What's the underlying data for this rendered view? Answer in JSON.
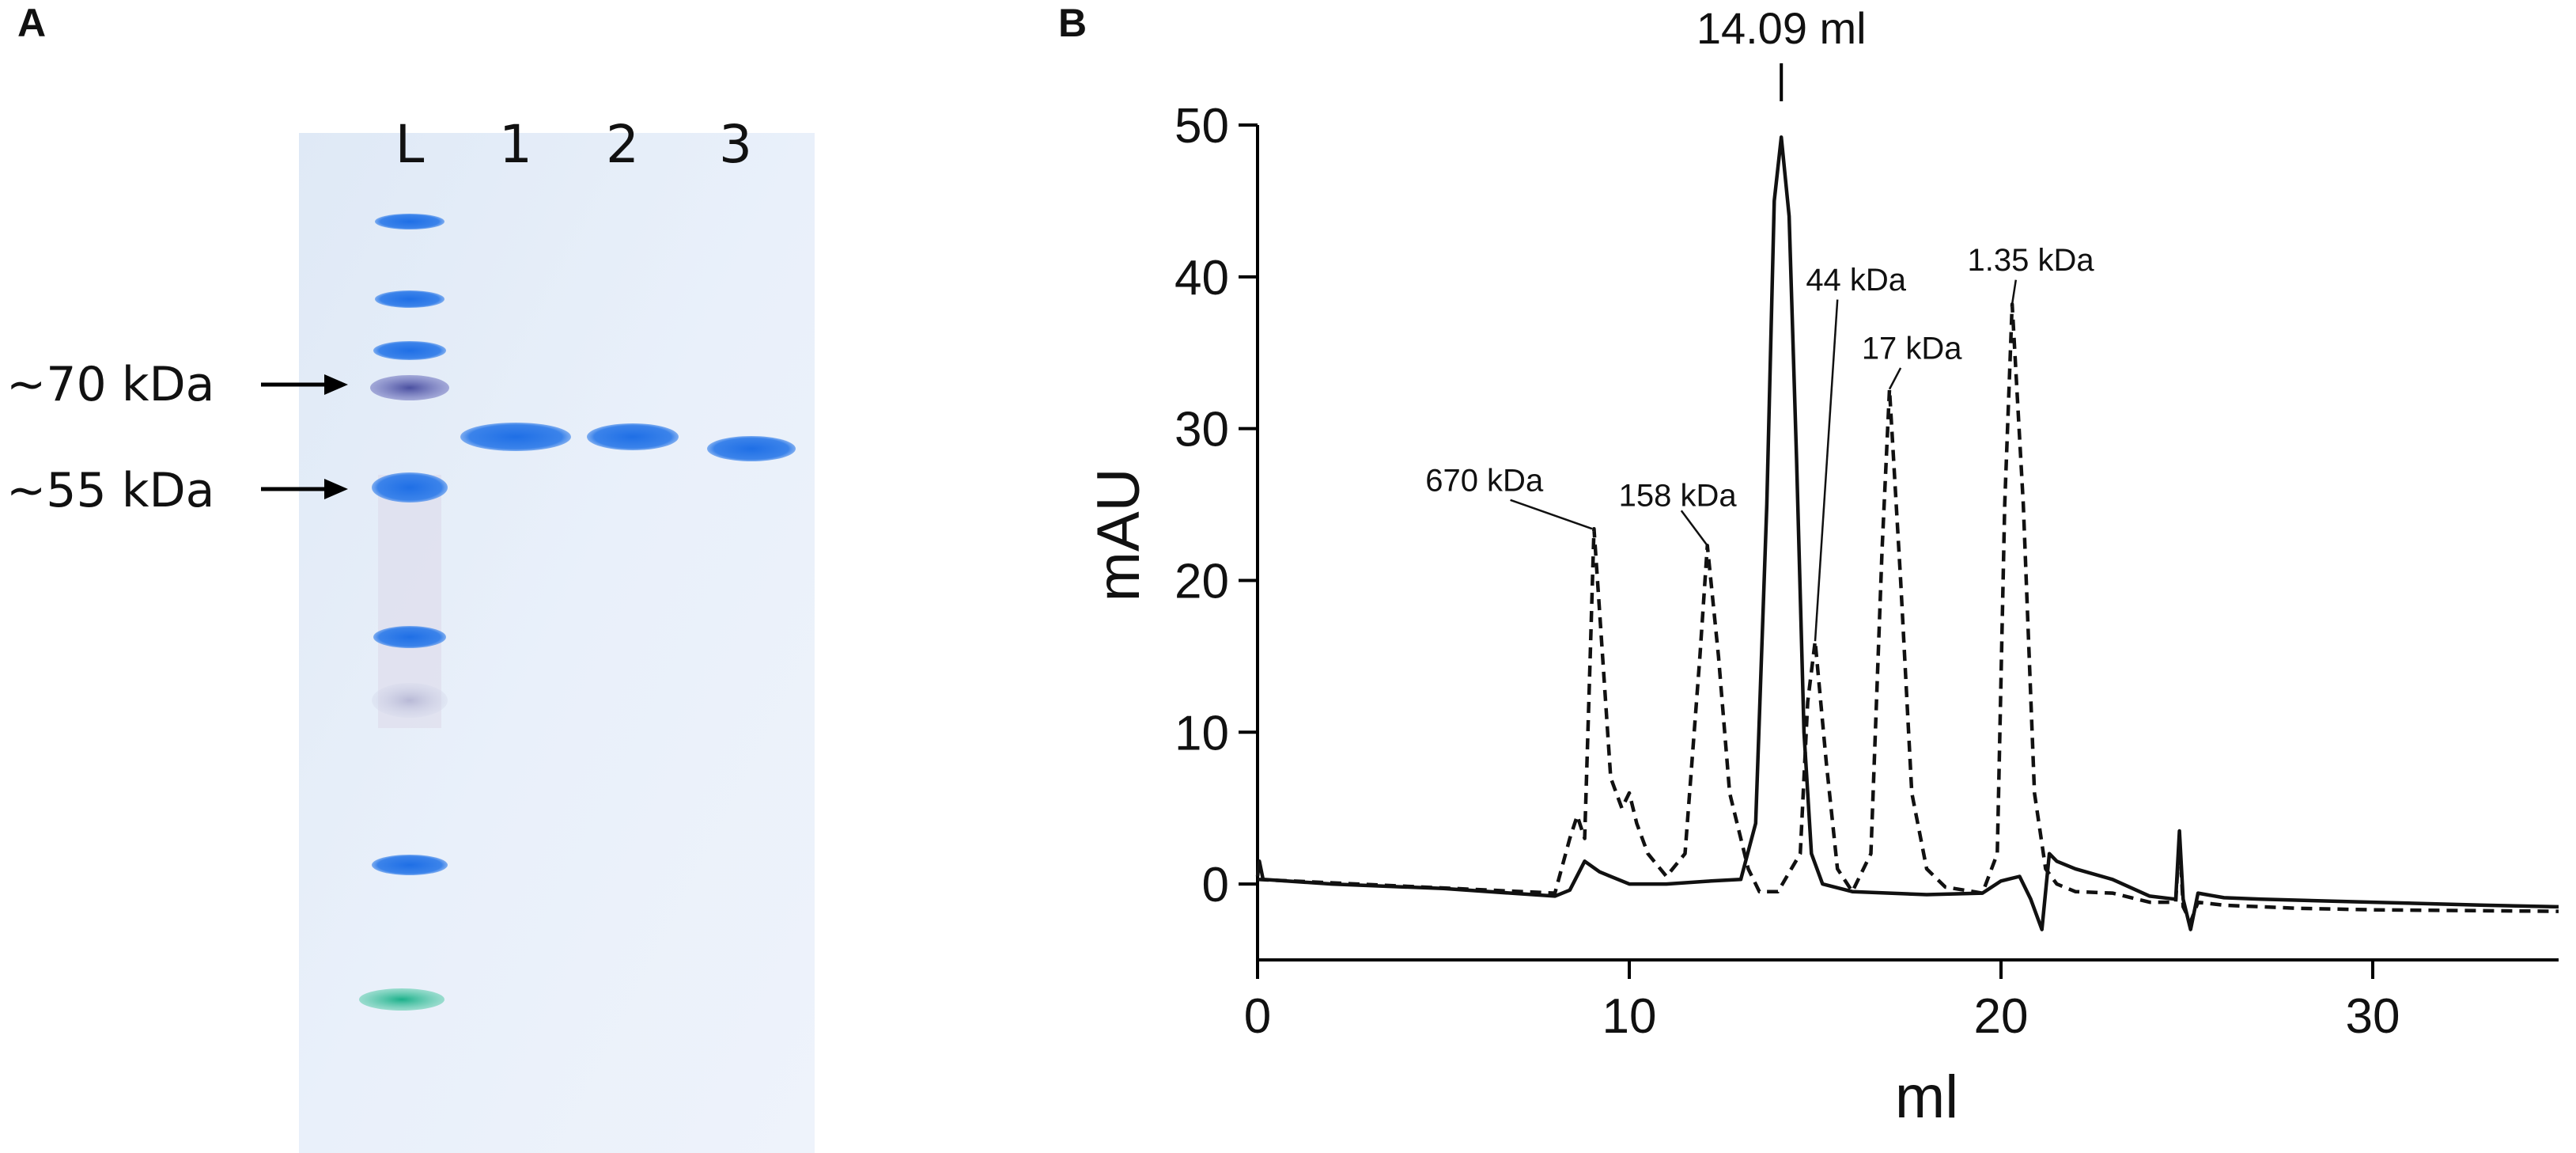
{
  "panels": {
    "a_label": "A",
    "b_label": "B"
  },
  "gel": {
    "lane_labels": [
      "L",
      "1",
      "2",
      "3"
    ],
    "marker_labels": [
      "~70 kDa",
      "~55 kDa"
    ]
  },
  "chart_data": {
    "type": "line",
    "title": "",
    "xlabel": "ml",
    "ylabel": "mAU",
    "xlim": [
      0,
      35
    ],
    "ylim": [
      -5,
      50
    ],
    "x_ticks": [
      0,
      10,
      20,
      30
    ],
    "x_tick_labels": [
      "0",
      "10",
      "20",
      "30"
    ],
    "y_ticks": [
      0,
      10,
      20,
      30,
      40,
      50
    ],
    "y_tick_labels": [
      "0",
      "10",
      "20",
      "30",
      "40",
      "50"
    ],
    "grid": false,
    "legend": "none",
    "peak_label": "14.09 ml",
    "annotations": [
      {
        "text": "670 kDa",
        "x": 9.0,
        "y": 23.4
      },
      {
        "text": "158 kDa",
        "x": 12.1,
        "y": 22.3
      },
      {
        "text": "44 kDa",
        "x": 15.0,
        "y": 16.0
      },
      {
        "text": "17 kDa",
        "x": 17.0,
        "y": 32.6
      },
      {
        "text": "1.35 kDa",
        "x": 20.3,
        "y": 38.2
      }
    ],
    "series": [
      {
        "style": "solid",
        "points": [
          [
            0,
            0.5
          ],
          [
            0.05,
            1.5
          ],
          [
            0.15,
            0.3
          ],
          [
            2,
            0.0
          ],
          [
            5,
            -0.3
          ],
          [
            8,
            -0.8
          ],
          [
            8.4,
            -0.4
          ],
          [
            8.8,
            1.5
          ],
          [
            9.2,
            0.8
          ],
          [
            10,
            0
          ],
          [
            11,
            0
          ],
          [
            12.2,
            0.2
          ],
          [
            13,
            0.3
          ],
          [
            13.4,
            4
          ],
          [
            13.7,
            25
          ],
          [
            13.9,
            45
          ],
          [
            14.09,
            49.2
          ],
          [
            14.3,
            44
          ],
          [
            14.5,
            28
          ],
          [
            14.7,
            10
          ],
          [
            14.9,
            2
          ],
          [
            15.2,
            0
          ],
          [
            16,
            -0.5
          ],
          [
            18,
            -0.7
          ],
          [
            19.5,
            -0.6
          ],
          [
            20,
            0.2
          ],
          [
            20.5,
            0.5
          ],
          [
            20.8,
            -1
          ],
          [
            21.1,
            -3
          ],
          [
            21.3,
            2
          ],
          [
            21.5,
            1.5
          ],
          [
            22,
            1
          ],
          [
            23,
            0.3
          ],
          [
            24,
            -0.8
          ],
          [
            24.7,
            -1
          ],
          [
            24.8,
            3.5
          ],
          [
            24.9,
            -1
          ],
          [
            25.1,
            -3
          ],
          [
            25.3,
            -0.6
          ],
          [
            26,
            -0.9
          ],
          [
            27,
            -1.0
          ],
          [
            30,
            -1.2
          ],
          [
            33,
            -1.4
          ],
          [
            35,
            -1.5
          ]
        ]
      },
      {
        "style": "dashed",
        "points": [
          [
            0,
            0.3
          ],
          [
            8,
            -0.6
          ],
          [
            8.4,
            3
          ],
          [
            8.6,
            4.5
          ],
          [
            8.8,
            3
          ],
          [
            8.95,
            15
          ],
          [
            9.05,
            23.4
          ],
          [
            9.2,
            18
          ],
          [
            9.5,
            7
          ],
          [
            9.8,
            5
          ],
          [
            10,
            6
          ],
          [
            10.2,
            4
          ],
          [
            10.5,
            2
          ],
          [
            11,
            0.5
          ],
          [
            11.5,
            2
          ],
          [
            11.9,
            15
          ],
          [
            12.1,
            22.3
          ],
          [
            12.4,
            15
          ],
          [
            12.7,
            6
          ],
          [
            13.2,
            1
          ],
          [
            13.5,
            -0.5
          ],
          [
            14,
            -0.5
          ],
          [
            14.6,
            2
          ],
          [
            14.8,
            12
          ],
          [
            15.0,
            16
          ],
          [
            15.3,
            8
          ],
          [
            15.6,
            1
          ],
          [
            16,
            -0.5
          ],
          [
            16.5,
            2
          ],
          [
            16.8,
            22
          ],
          [
            17.0,
            32.6
          ],
          [
            17.3,
            20
          ],
          [
            17.6,
            6
          ],
          [
            18,
            1
          ],
          [
            18.5,
            -0.2
          ],
          [
            19.5,
            -0.6
          ],
          [
            19.9,
            2
          ],
          [
            20.1,
            25
          ],
          [
            20.3,
            38.2
          ],
          [
            20.6,
            25
          ],
          [
            20.9,
            6
          ],
          [
            21.2,
            1
          ],
          [
            21.5,
            0
          ],
          [
            22,
            -0.5
          ],
          [
            23,
            -0.6
          ],
          [
            24,
            -1.2
          ],
          [
            24.7,
            -1.2
          ],
          [
            24.8,
            3
          ],
          [
            24.9,
            -1.5
          ],
          [
            25.1,
            -2.5
          ],
          [
            25.3,
            -1.2
          ],
          [
            26,
            -1.4
          ],
          [
            28,
            -1.6
          ],
          [
            30,
            -1.7
          ],
          [
            35,
            -1.8
          ]
        ]
      }
    ]
  }
}
